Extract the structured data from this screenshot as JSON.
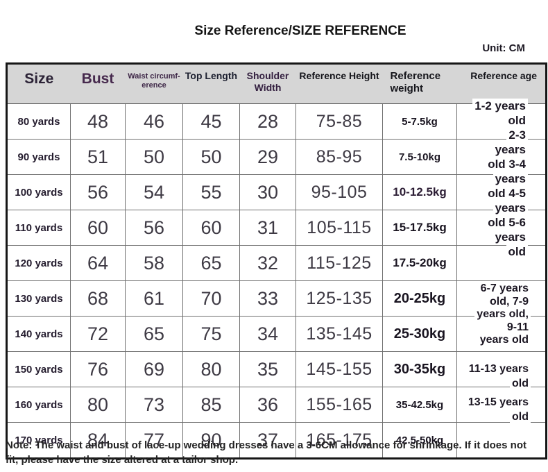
{
  "page": {
    "title": "Size Reference/SIZE REFERENCE",
    "unit_label": "Unit: CM",
    "note": "Note: The waist and bust of lace-up wedding dresses have a 3-6CM allowance for shrinkage. If it does not fit, please have the size altered at a tailor shop."
  },
  "table": {
    "headers": [
      "Size",
      "Bust",
      "Waist circumf-erence",
      "Top Length",
      "Shoulder Width",
      "Reference Height",
      "Reference weight",
      "Reference age"
    ],
    "rows": [
      {
        "size": "80 yards",
        "bust": "48",
        "waist": "46",
        "top_length": "45",
        "shoulder_width": "28",
        "height": "75-85",
        "weight": "5-7.5kg"
      },
      {
        "size": "90 yards",
        "bust": "51",
        "waist": "50",
        "top_length": "50",
        "shoulder_width": "29",
        "height": "85-95",
        "weight": "7.5-10kg"
      },
      {
        "size": "100 yards",
        "bust": "56",
        "waist": "54",
        "top_length": "55",
        "shoulder_width": "30",
        "height": "95-105",
        "weight": "10-12.5kg"
      },
      {
        "size": "110 yards",
        "bust": "60",
        "waist": "56",
        "top_length": "60",
        "shoulder_width": "31",
        "height": "105-115",
        "weight": "15-17.5kg"
      },
      {
        "size": "120 yards",
        "bust": "64",
        "waist": "58",
        "top_length": "65",
        "shoulder_width": "32",
        "height": "115-125",
        "weight": "17.5-20kg"
      },
      {
        "size": "130 yards",
        "bust": "68",
        "waist": "61",
        "top_length": "70",
        "shoulder_width": "33",
        "height": "125-135",
        "weight": "20-25kg"
      },
      {
        "size": "140 yards",
        "bust": "72",
        "waist": "65",
        "top_length": "75",
        "shoulder_width": "34",
        "height": "135-145",
        "weight": "25-30kg"
      },
      {
        "size": "150 yards",
        "bust": "76",
        "waist": "69",
        "top_length": "80",
        "shoulder_width": "35",
        "height": "145-155",
        "weight": "30-35kg"
      },
      {
        "size": "160 yards",
        "bust": "80",
        "waist": "73",
        "top_length": "85",
        "shoulder_width": "36",
        "height": "155-165",
        "weight": "35-42.5kg"
      },
      {
        "size": "170 yards",
        "bust": "84",
        "waist": "77",
        "top_length": "90",
        "shoulder_width": "37",
        "height": "165-175",
        "weight": "42.5-50kg"
      }
    ],
    "age_blocks": [
      {
        "lines": [
          "1-2 years",
          "old",
          "2-3",
          "years",
          "old 3-4",
          "years",
          "old 4-5",
          "years",
          "old 5-6",
          "years",
          "old"
        ]
      },
      {
        "lines": [
          "6-7 years",
          "old, 7-9",
          "years old,",
          "9-11",
          "years old"
        ]
      },
      {
        "lines": [
          "11-13 years",
          "old"
        ]
      },
      {
        "lines": [
          "13-15 years",
          "old"
        ]
      }
    ]
  }
}
